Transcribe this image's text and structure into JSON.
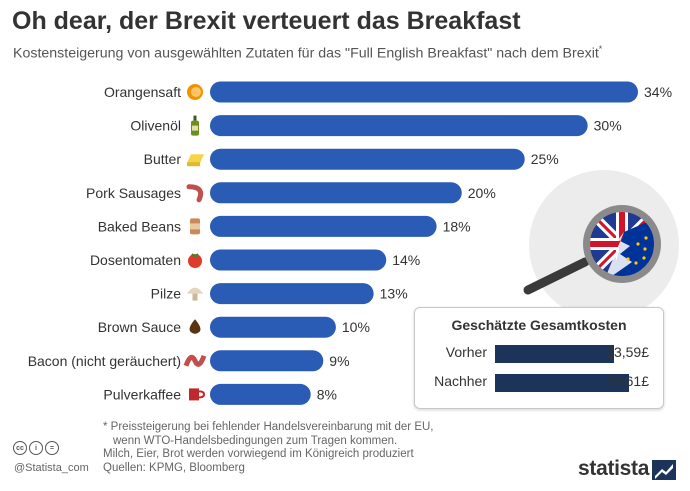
{
  "title": "Oh dear, der Brexit verteuert das Breakfast",
  "subtitle": "Kostensteigerung von ausgewählten Zutaten für das \"Full English Breakfast\" nach dem Brexit",
  "subtitle_mark": "*",
  "colors": {
    "bar": "#2a5bb5",
    "panel_bar": "#1c3459",
    "text": "#333333"
  },
  "chart_data": {
    "type": "bar",
    "orientation": "horizontal",
    "categories": [
      "Orangensaft",
      "Olivenöl",
      "Butter",
      "Pork Sausages",
      "Baked Beans",
      "Dosentomaten",
      "Pilze",
      "Brown Sauce",
      "Bacon (nicht geräuchert)",
      "Pulverkaffee"
    ],
    "values": [
      34,
      30,
      25,
      20,
      18,
      14,
      13,
      10,
      9,
      8
    ],
    "value_labels": [
      "34%",
      "30%",
      "25%",
      "20%",
      "18%",
      "14%",
      "13%",
      "10%",
      "9%",
      "8%"
    ],
    "icons": [
      "orange-slice-icon",
      "olive-oil-bottle-icon",
      "butter-icon",
      "sausage-icon",
      "bean-can-icon",
      "tomato-icon",
      "mushroom-icon",
      "brown-sauce-icon",
      "bacon-icon",
      "coffee-mug-icon"
    ],
    "xlim": [
      0,
      34
    ],
    "grid": false,
    "legend": "none"
  },
  "inset": {
    "title": "Geschätzte Gesamtkosten",
    "rows": [
      {
        "label": "Vorher",
        "value": 23.59,
        "value_label": "23,59£"
      },
      {
        "label": "Nachher",
        "value": 26.61,
        "value_label": "26,61£"
      }
    ],
    "max": 26.61
  },
  "illustration": "frying-pan-flag-icon",
  "footnotes": [
    "* Preissteigerung bei fehlender Handelsvereinbarung mit der EU,",
    "wenn WTO-Handelsbedingungen zum Tragen kommen.",
    "Milch, Eier, Brot werden vorwiegend im Königreich produziert",
    "Quellen: KPMG, Bloomberg"
  ],
  "license_icons": [
    "cc",
    "i",
    "="
  ],
  "handle": "@Statista_com",
  "brand": "statista"
}
